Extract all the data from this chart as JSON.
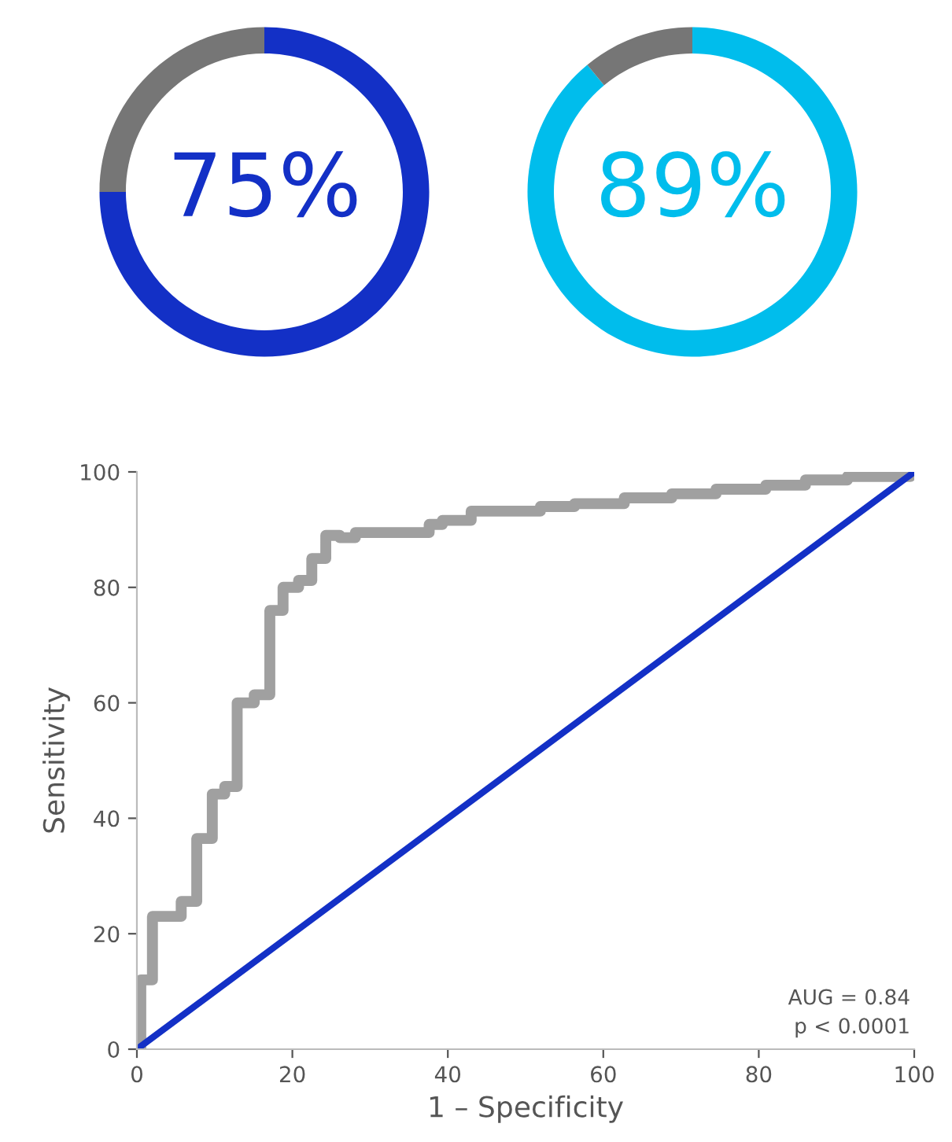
{
  "chart_data": [
    {
      "type": "donut",
      "categories": [
        null,
        null
      ],
      "values": [
        75,
        25
      ],
      "colors": [
        "#1330c6",
        "#767676"
      ],
      "value_labels": [
        "75%",
        null
      ]
    },
    {
      "type": "donut",
      "categories": [
        null,
        null
      ],
      "values": [
        89,
        11
      ],
      "colors": [
        "#00bdec",
        "#767676"
      ],
      "value_labels": [
        "89%",
        null
      ]
    },
    {
      "type": "line",
      "xlabel": "1 – Specificity",
      "ylabel": "Sensitivity",
      "xlim": [
        0,
        100
      ],
      "ylim": [
        0,
        100
      ],
      "xticks": [
        0,
        20,
        40,
        60,
        80,
        100
      ],
      "yticks": [
        0,
        20,
        40,
        60,
        80,
        100
      ],
      "grid": false,
      "series": [
        {
          "type": "step",
          "color": "#a0a0a0",
          "x": [
            0,
            0.5,
            2,
            5.7,
            7.7,
            9.7,
            11.3,
            12.9,
            15.1,
            17.1,
            18.8,
            20.8,
            22.5,
            24.3,
            26.1,
            28.1,
            37.6,
            39.3,
            43,
            51.9,
            56.3,
            62.7,
            68.8,
            74.5,
            80.9,
            86,
            91.4,
            99.5,
            100
          ],
          "values": [
            0,
            12,
            23,
            25.6,
            36.5,
            44.2,
            45.5,
            60,
            61.4,
            76,
            80,
            81.2,
            85,
            89,
            88.6,
            89.5,
            90.9,
            91.6,
            93.2,
            94,
            94.5,
            95.5,
            96.2,
            97,
            97.7,
            98.6,
            99.2,
            100,
            100
          ]
        },
        {
          "type": "line",
          "color": "#1330c6",
          "x": [
            0,
            100
          ],
          "values": [
            0,
            100
          ]
        }
      ],
      "annotations": [
        "AUG = 0.84",
        "p < 0.0001"
      ]
    }
  ]
}
